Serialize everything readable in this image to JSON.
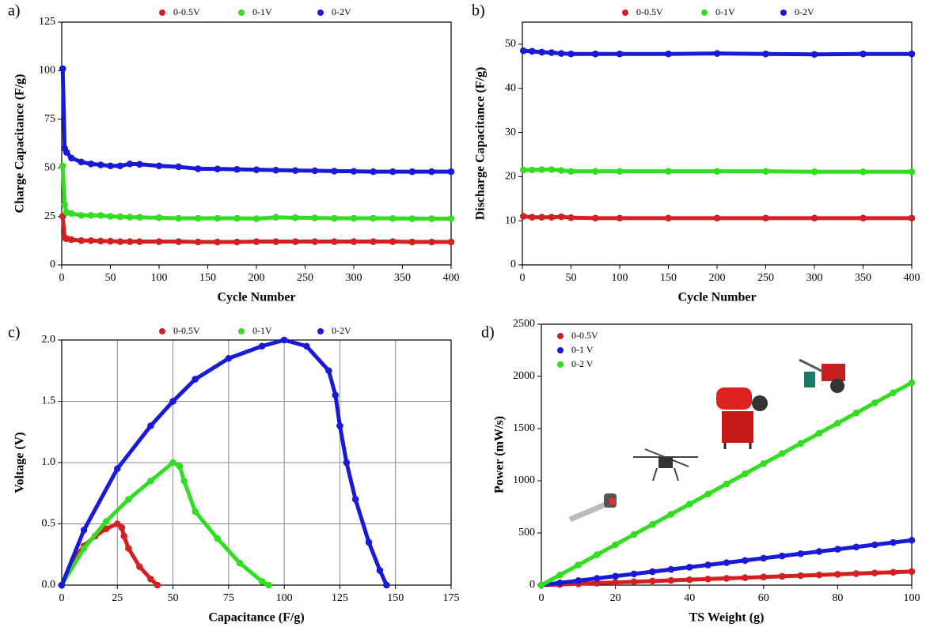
{
  "chart_data": [
    {
      "type": "scatter",
      "label": "a)",
      "xlabel": "Cycle Number",
      "ylabel": "Charge Capacitance (F/g)",
      "legend": "top",
      "x": [
        1,
        3,
        5,
        10,
        20,
        30,
        40,
        50,
        60,
        70,
        80,
        100,
        120,
        140,
        160,
        180,
        200,
        220,
        240,
        260,
        280,
        300,
        320,
        340,
        360,
        380,
        400
      ],
      "series": [
        {
          "name": "0-0.5V",
          "color": "#d42020",
          "values": [
            25,
            14,
            13.5,
            13,
            12.5,
            12.5,
            12.3,
            12.2,
            12,
            12,
            12,
            12,
            12,
            11.8,
            11.8,
            11.8,
            12,
            12,
            12,
            12,
            12,
            12,
            12,
            12,
            11.8,
            11.8,
            11.8
          ]
        },
        {
          "name": "0-1V",
          "color": "#33dd22",
          "values": [
            51,
            31,
            27,
            26.5,
            25.5,
            25.5,
            25.5,
            25,
            24.8,
            24.6,
            24.5,
            24.3,
            24,
            24,
            24,
            24,
            23.8,
            24.5,
            24.3,
            24.2,
            24,
            24,
            24,
            23.9,
            23.8,
            23.8,
            23.8
          ]
        },
        {
          "name": "0-2V",
          "color": "#1a1ad6",
          "values": [
            101,
            60,
            58,
            55,
            53,
            52,
            51.5,
            51,
            51,
            52,
            51.8,
            51,
            50.5,
            49.5,
            49.4,
            49.2,
            49,
            48.8,
            48.6,
            48.5,
            48.3,
            48.2,
            48,
            48,
            48,
            48,
            48
          ]
        }
      ],
      "xlim": [
        0,
        400
      ],
      "xticks": [
        0,
        50,
        100,
        150,
        200,
        250,
        300,
        350,
        400
      ],
      "ylim": [
        0,
        125
      ],
      "yticks": [
        0,
        25,
        50,
        75,
        100,
        125
      ],
      "grid": false
    },
    {
      "type": "scatter",
      "label": "b)",
      "xlabel": "Cycle Number",
      "ylabel": "Discharge Capacitance (F/g)",
      "legend": "top",
      "x": [
        1,
        10,
        20,
        30,
        40,
        50,
        75,
        100,
        150,
        200,
        250,
        300,
        350,
        400
      ],
      "series": [
        {
          "name": "0-0.5V",
          "color": "#d42020",
          "values": [
            11,
            10.8,
            10.8,
            10.8,
            10.9,
            10.7,
            10.6,
            10.6,
            10.6,
            10.6,
            10.6,
            10.6,
            10.6,
            10.6
          ]
        },
        {
          "name": "0-1V",
          "color": "#33dd22",
          "values": [
            21.5,
            21.5,
            21.6,
            21.6,
            21.4,
            21.2,
            21.2,
            21.2,
            21.2,
            21.2,
            21.2,
            21.1,
            21.1,
            21.1
          ]
        },
        {
          "name": "0-2V",
          "color": "#1a1ad6",
          "values": [
            48.5,
            48.4,
            48.2,
            48.1,
            47.9,
            47.8,
            47.8,
            47.8,
            47.8,
            47.9,
            47.8,
            47.7,
            47.8,
            47.8
          ]
        }
      ],
      "xlim": [
        0,
        400
      ],
      "xticks": [
        0,
        50,
        100,
        150,
        200,
        250,
        300,
        350,
        400
      ],
      "ylim": [
        0,
        55
      ],
      "yticks": [
        0,
        10,
        20,
        30,
        40,
        50
      ],
      "grid": false
    },
    {
      "type": "scatter",
      "label": "c)",
      "xlabel": "Capacitance (F/g)",
      "ylabel": "Voltage (V)",
      "legend": "top",
      "series": [
        {
          "name": "0-0.5V",
          "color": "#d42020",
          "x": [
            0,
            5,
            10,
            15,
            20,
            25,
            27,
            28,
            30,
            35,
            40,
            43
          ],
          "values": [
            0,
            0.2,
            0.32,
            0.4,
            0.46,
            0.5,
            0.47,
            0.4,
            0.3,
            0.15,
            0.05,
            0
          ]
        },
        {
          "name": "0-1V",
          "color": "#33dd22",
          "x": [
            0,
            10,
            20,
            30,
            40,
            50,
            53,
            55,
            60,
            70,
            80,
            90,
            93
          ],
          "values": [
            0,
            0.3,
            0.52,
            0.7,
            0.85,
            1.0,
            0.97,
            0.85,
            0.6,
            0.38,
            0.18,
            0.03,
            0
          ]
        },
        {
          "name": "0-2V",
          "color": "#1a1ad6",
          "x": [
            0,
            10,
            25,
            40,
            50,
            60,
            75,
            90,
            100,
            110,
            120,
            123,
            125,
            128,
            132,
            138,
            143,
            146
          ],
          "values": [
            0,
            0.45,
            0.95,
            1.3,
            1.5,
            1.68,
            1.85,
            1.95,
            2.0,
            1.95,
            1.75,
            1.55,
            1.3,
            1.0,
            0.7,
            0.35,
            0.12,
            0
          ]
        }
      ],
      "xlim": [
        0,
        175
      ],
      "xticks": [
        0,
        25,
        50,
        75,
        100,
        125,
        150,
        175
      ],
      "ylim": [
        0,
        2
      ],
      "yticks": [
        {
          "value": 0,
          "label": "0.0"
        },
        {
          "value": 0.5,
          "label": "0.5"
        },
        {
          "value": 1,
          "label": "1.0"
        },
        {
          "value": 1.5,
          "label": "1.5"
        },
        {
          "value": 2,
          "label": "2.0"
        }
      ],
      "grid": true
    },
    {
      "type": "scatter",
      "label": "d)",
      "xlabel": "TS Weight (g)",
      "ylabel": "Power (mW/s)",
      "legend": "upper left",
      "x": [
        0,
        5,
        10,
        15,
        20,
        25,
        30,
        35,
        40,
        45,
        50,
        55,
        60,
        65,
        70,
        75,
        80,
        85,
        90,
        95,
        100
      ],
      "series": [
        {
          "name": "0-0.5V",
          "color": "#d42020",
          "values": [
            0,
            6.5,
            13,
            19.5,
            26,
            32.5,
            39,
            45.5,
            52,
            58.5,
            65,
            71.5,
            78,
            84.5,
            91,
            97.5,
            104,
            110.5,
            117,
            123.5,
            130
          ]
        },
        {
          "name": "0-1 V",
          "color": "#1a1ad6",
          "values": [
            0,
            21.5,
            43,
            64.5,
            86,
            107.5,
            129,
            150.5,
            172,
            193.5,
            215,
            236.5,
            258,
            279.5,
            301,
            322.5,
            344,
            365.5,
            387,
            408.5,
            430
          ]
        },
        {
          "name": "0-2 V",
          "color": "#33dd22",
          "values": [
            0,
            97,
            194,
            291,
            388,
            485,
            582,
            679,
            776,
            873,
            970,
            1067,
            1164,
            1261,
            1358,
            1455,
            1552,
            1649,
            1746,
            1843,
            1940
          ]
        }
      ],
      "xlim": [
        0,
        100
      ],
      "xticks": [
        0,
        20,
        40,
        60,
        80,
        100
      ],
      "ylim": [
        0,
        2500
      ],
      "yticks": [
        0,
        500,
        1000,
        1500,
        2000,
        2500
      ],
      "grid": false
    }
  ]
}
